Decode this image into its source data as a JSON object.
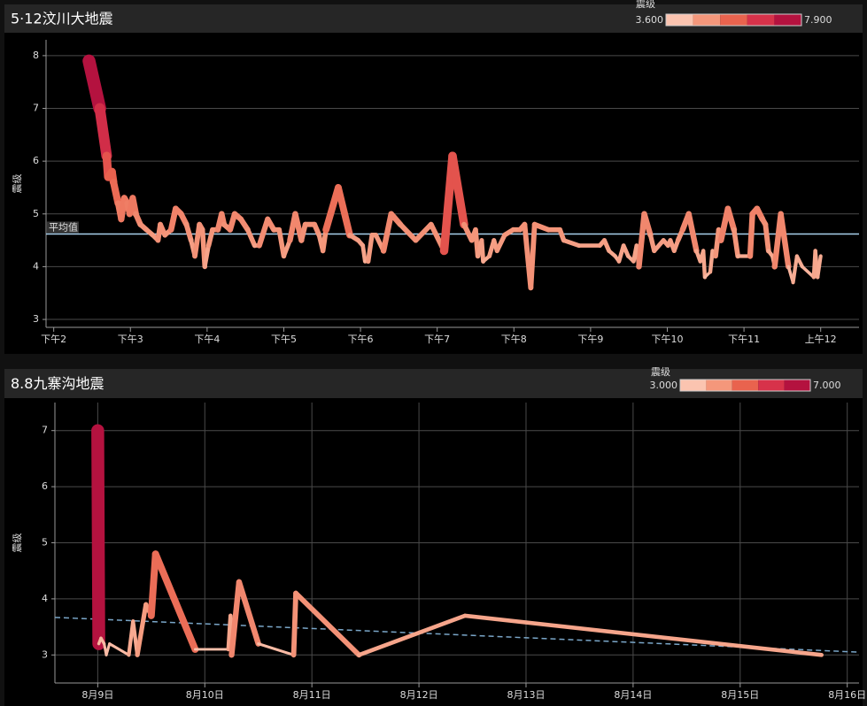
{
  "chart_data": [
    {
      "type": "line",
      "title": "5·12汶川大地震",
      "y_label": "震级",
      "color_scale": {
        "title": "震级",
        "min": {
          "value": 3.6,
          "label": "3.600"
        },
        "max": {
          "value": 7.9,
          "label": "7.900"
        },
        "colors": [
          "#fbc4b0",
          "#f4977b",
          "#e9634e",
          "#d7324a",
          "#b4123f"
        ]
      },
      "x": [
        14.46,
        14.6,
        14.69,
        14.71,
        14.76,
        14.78,
        14.84,
        14.88,
        14.92,
        14.96,
        14.99,
        15.03,
        15.07,
        15.13,
        15.21,
        15.29,
        15.36,
        15.39,
        15.45,
        15.53,
        15.59,
        15.66,
        15.73,
        15.79,
        15.84,
        15.9,
        15.94,
        15.97,
        16.02,
        16.07,
        16.14,
        16.19,
        16.22,
        16.3,
        16.36,
        16.44,
        16.53,
        16.62,
        16.68,
        16.79,
        16.87,
        16.94,
        17.0,
        17.08,
        17.15,
        17.23,
        17.28,
        17.4,
        17.46,
        17.51,
        17.55,
        17.71,
        17.86,
        17.97,
        18.03,
        18.06,
        18.1,
        18.15,
        18.2,
        18.3,
        18.4,
        18.52,
        18.72,
        18.92,
        19.09,
        19.2,
        19.35,
        19.45,
        19.5,
        19.53,
        19.58,
        19.6,
        19.68,
        19.74,
        19.78,
        19.88,
        19.99,
        20.08,
        20.14,
        20.22,
        20.27,
        20.45,
        20.6,
        20.65,
        20.85,
        21.12,
        21.18,
        21.24,
        21.32,
        21.37,
        21.43,
        21.49,
        21.56,
        21.6,
        21.63,
        21.7,
        21.78,
        21.83,
        21.95,
        22.01,
        22.04,
        22.09,
        22.14,
        22.2,
        22.28,
        22.38,
        22.43,
        22.47,
        22.49,
        22.56,
        22.59,
        22.63,
        22.67,
        22.7,
        22.79,
        22.87,
        22.92,
        23.08,
        23.11,
        23.17,
        23.24,
        23.28,
        23.32,
        23.37,
        23.4,
        23.48,
        23.58,
        23.64,
        23.69,
        23.76,
        23.91,
        23.93,
        23.96,
        24.0
      ],
      "values": [
        7.9,
        7.0,
        6.1,
        5.7,
        5.8,
        5.6,
        5.2,
        4.9,
        5.3,
        5.2,
        5.0,
        5.3,
        5.0,
        4.8,
        4.7,
        4.6,
        4.5,
        4.8,
        4.6,
        4.7,
        5.1,
        5.0,
        4.8,
        4.5,
        4.2,
        4.8,
        4.7,
        4.0,
        4.4,
        4.7,
        4.7,
        5.0,
        4.8,
        4.7,
        5.0,
        4.9,
        4.7,
        4.4,
        4.4,
        4.9,
        4.7,
        4.7,
        4.2,
        4.5,
        5.0,
        4.5,
        4.8,
        4.8,
        4.6,
        4.3,
        4.7,
        5.5,
        4.6,
        4.5,
        4.4,
        4.1,
        4.1,
        4.6,
        4.6,
        4.3,
        5.0,
        4.8,
        4.5,
        4.8,
        4.3,
        6.1,
        4.8,
        4.5,
        4.7,
        4.2,
        4.5,
        4.1,
        4.2,
        4.5,
        4.3,
        4.6,
        4.7,
        4.7,
        4.8,
        3.6,
        4.8,
        4.7,
        4.7,
        4.5,
        4.4,
        4.4,
        4.5,
        4.3,
        4.2,
        4.1,
        4.4,
        4.2,
        4.1,
        4.4,
        4.0,
        5.0,
        4.6,
        4.3,
        4.5,
        4.4,
        4.5,
        4.3,
        4.5,
        4.7,
        5.0,
        4.3,
        4.1,
        4.3,
        3.8,
        3.9,
        4.3,
        4.2,
        4.7,
        4.5,
        5.1,
        4.7,
        4.2,
        4.2,
        5.0,
        5.1,
        4.9,
        4.8,
        4.3,
        4.2,
        4.0,
        5.0,
        4.0,
        3.7,
        4.2,
        4.0,
        3.8,
        4.3,
        3.8,
        4.2
      ],
      "xlim": [
        13.9,
        24.5
      ],
      "xticks": [
        {
          "value": 14,
          "label": "下午2"
        },
        {
          "value": 15,
          "label": "下午3"
        },
        {
          "value": 16,
          "label": "下午4"
        },
        {
          "value": 17,
          "label": "下午5"
        },
        {
          "value": 18,
          "label": "下午6"
        },
        {
          "value": 19,
          "label": "下午7"
        },
        {
          "value": 20,
          "label": "下午8"
        },
        {
          "value": 21,
          "label": "下午9"
        },
        {
          "value": 22,
          "label": "下午10"
        },
        {
          "value": 23,
          "label": "下午11"
        },
        {
          "value": 24,
          "label": "上午12"
        }
      ],
      "ylim": [
        2.85,
        8.3
      ],
      "yticks": [
        3,
        4,
        5,
        6,
        7,
        8
      ],
      "grid": true,
      "x_grid": false,
      "mean_line": {
        "label": "平均值",
        "value": 4.62
      }
    },
    {
      "type": "line",
      "title": "8.8九寨沟地震",
      "y_label": "震级",
      "color_scale": {
        "title": "震级",
        "min": {
          "value": 3.0,
          "label": "3.000"
        },
        "max": {
          "value": 7.0,
          "label": "7.000"
        },
        "colors": [
          "#fbc4b0",
          "#f4977b",
          "#e9634e",
          "#d7324a",
          "#b4123f"
        ]
      },
      "x": [
        9.0,
        9.01,
        9.03,
        9.06,
        9.08,
        9.11,
        9.29,
        9.33,
        9.37,
        9.45,
        9.5,
        9.54,
        9.91,
        10.22,
        10.24,
        10.25,
        10.32,
        10.5,
        10.83,
        10.85,
        11.44,
        12.43,
        15.76
      ],
      "values": [
        7.0,
        3.2,
        3.3,
        3.2,
        3.0,
        3.2,
        3.0,
        3.6,
        3.0,
        3.9,
        3.7,
        4.8,
        3.1,
        3.1,
        3.7,
        3.0,
        4.3,
        3.2,
        3.0,
        4.1,
        3.0,
        3.7,
        3.0
      ],
      "xlim": [
        8.6,
        16.11
      ],
      "xticks": [
        {
          "value": 9,
          "label": "8月9日"
        },
        {
          "value": 10,
          "label": "8月10日"
        },
        {
          "value": 11,
          "label": "8月11日"
        },
        {
          "value": 12,
          "label": "8月12日"
        },
        {
          "value": 13,
          "label": "8月13日"
        },
        {
          "value": 14,
          "label": "8月14日"
        },
        {
          "value": 15,
          "label": "8月15日"
        },
        {
          "value": 16,
          "label": "8月16日"
        }
      ],
      "ylim": [
        2.5,
        7.5
      ],
      "yticks": [
        3,
        4,
        5,
        6,
        7
      ],
      "grid": true,
      "x_grid": true,
      "trend_line": [
        3.67,
        3.05
      ]
    }
  ]
}
